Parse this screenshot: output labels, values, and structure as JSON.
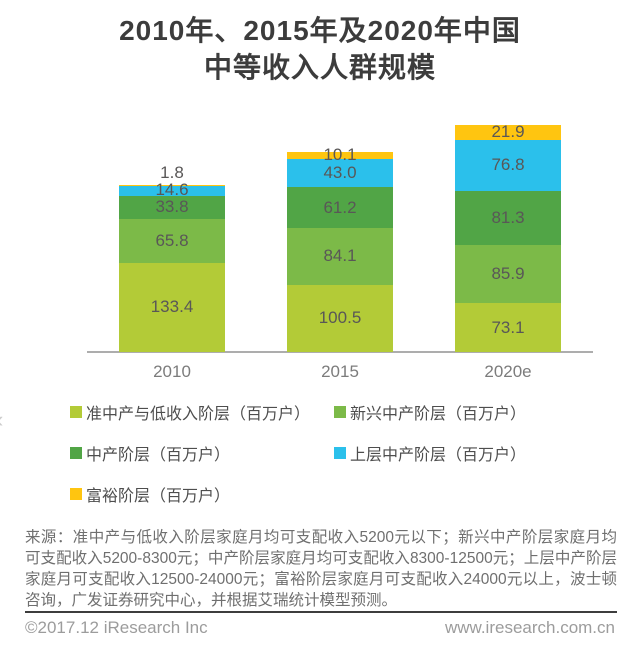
{
  "page": {
    "title_line1": "2010年、2015年及2020年中国",
    "title_line2": "中等收入人群规模"
  },
  "chart_data": {
    "type": "bar",
    "stacked": true,
    "title": "2010年、2015年及2020年中国中等收入人群规模",
    "categories": [
      "2010",
      "2015",
      "2020e"
    ],
    "series": [
      {
        "name": "准中产与低收入阶层（百万户）",
        "color": "#b3cb37",
        "values": [
          133.4,
          100.5,
          73.1
        ]
      },
      {
        "name": "新兴中产阶层（百万户）",
        "color": "#7cba48",
        "values": [
          65.8,
          84.1,
          85.9
        ]
      },
      {
        "name": "中产阶层（百万户）",
        "color": "#51a546",
        "values": [
          33.8,
          61.2,
          81.3
        ]
      },
      {
        "name": "上层中产阶层（百万户）",
        "color": "#2bc0eb",
        "values": [
          14.6,
          43.0,
          76.8
        ]
      },
      {
        "name": "富裕阶层（百万户）",
        "color": "#ffc510",
        "values": [
          1.8,
          10.1,
          21.9
        ]
      }
    ],
    "unit": "百万户",
    "value_label_decimals": 1,
    "legend_position": "bottom",
    "grid": false,
    "ylim": [
      0,
      360
    ]
  },
  "carousel": {
    "prev_glyph": "‹"
  },
  "source_note": "来源：准中产与低收入阶层家庭月均可支配收入5200元以下；新兴中产阶层家庭月均可支配收入5200-8300元；中产阶层家庭月均可支配收入8300-12500元；上层中产阶层家庭月可支配收入12500-24000元；富裕阶层家庭月可支配收入24000元以上，波士顿咨询，广发证券研究中心，并根据艾瑞统计模型预测。",
  "footer": {
    "copyright": "©2017.12 iResearch Inc",
    "website": "www.iresearch.com.cn"
  }
}
